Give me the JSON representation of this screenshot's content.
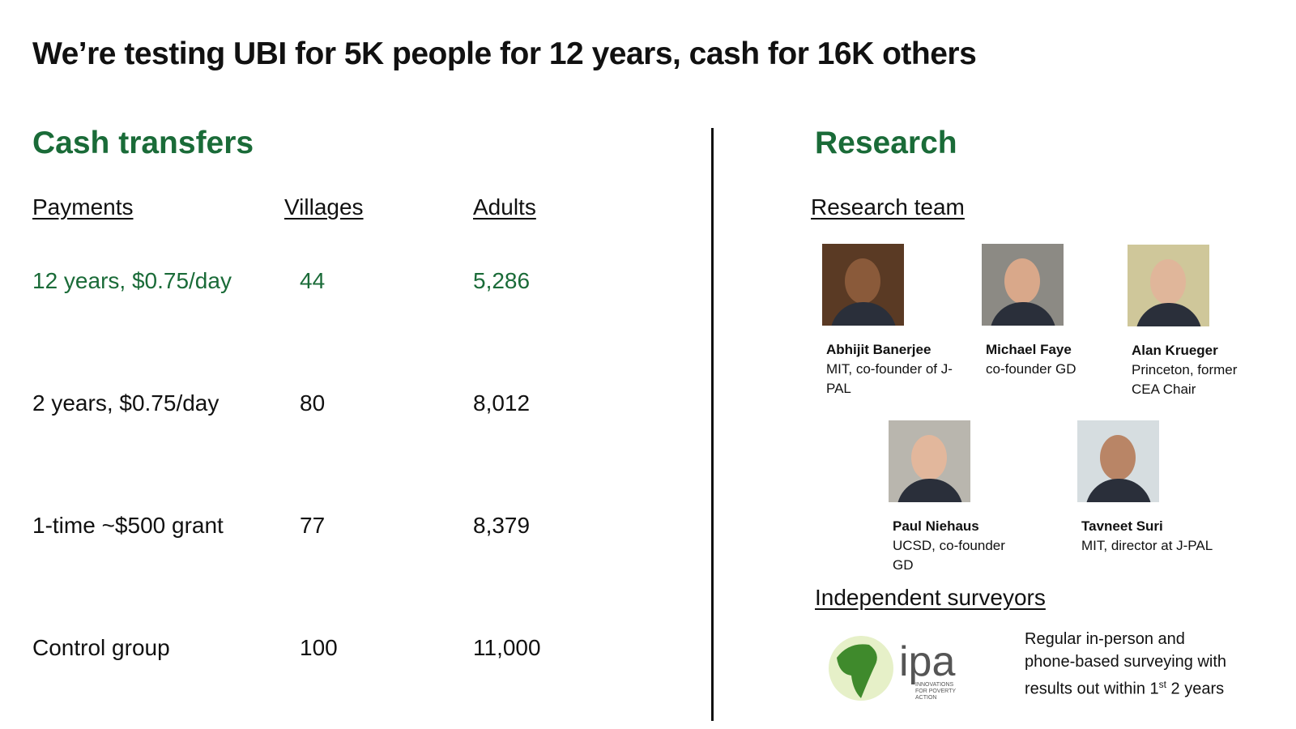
{
  "title": "We’re testing UBI for 5K people for 12 years, cash for 16K others",
  "left": {
    "heading": "Cash transfers",
    "table": {
      "headers": [
        "Payments",
        "Villages",
        "Adults"
      ],
      "rows": [
        [
          "12 years, $0.75/day",
          "44",
          "5,286"
        ],
        [
          "2 years, $0.75/day",
          "80",
          "8,012"
        ],
        [
          "1-time ~$500 grant",
          "77",
          "8,379"
        ],
        [
          "Control group",
          "100",
          "11,000"
        ]
      ]
    }
  },
  "right": {
    "heading": "Research",
    "team_heading": "Research team",
    "people": [
      {
        "name": "Abhijit Banerjee",
        "role": "MIT, co-founder of J-PAL"
      },
      {
        "name": "Michael Faye",
        "role": "co-founder GD"
      },
      {
        "name": "Alan Krueger",
        "role": "Princeton, former CEA Chair"
      },
      {
        "name": "Paul Niehaus",
        "role": "UCSD, co-founder GD"
      },
      {
        "name": "Tavneet Suri",
        "role": "MIT, director at J-PAL"
      }
    ],
    "surveyors_heading": "Independent surveyors",
    "logo": {
      "text": "ipa",
      "subtext": "INNOVATIONS FOR POVERTY ACTION"
    },
    "description": {
      "text": "Regular in-person and phone-based surveying with results out within 1",
      "sup": "st",
      "tail": " 2 years"
    }
  }
}
